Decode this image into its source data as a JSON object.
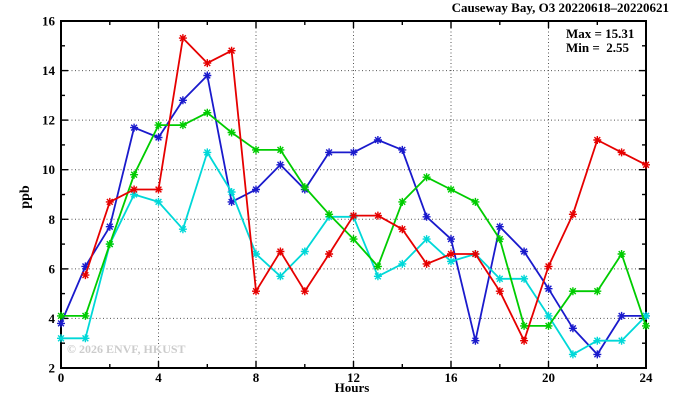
{
  "chart_data": {
    "type": "line",
    "title": "Causeway Bay, O3 20220618–20220621",
    "xlabel": "Hours",
    "ylabel": "ppb",
    "xlim": [
      0,
      24
    ],
    "ylim": [
      2,
      16
    ],
    "grid": "dotted",
    "legend": "none",
    "annotation": {
      "max_label": "Max = 15.31",
      "min_label": "Min =  2.55",
      "max_value": 15.31,
      "min_value": 2.55
    },
    "watermark": "© 2026 ENVF, HKUST",
    "axes": {
      "xticks": [
        0,
        4,
        8,
        12,
        16,
        20,
        24
      ],
      "yticks": [
        2,
        4,
        6,
        8,
        10,
        12,
        14,
        16
      ],
      "x_minor_step": 2,
      "y_minor_step": 1,
      "x_gridlines": [
        4,
        8,
        12,
        16,
        20
      ],
      "y_gridlines": [
        4,
        6,
        8,
        10,
        12,
        14
      ]
    },
    "x_hours": [
      0,
      1,
      2,
      3,
      4,
      5,
      6,
      7,
      8,
      9,
      10,
      11,
      12,
      13,
      14,
      15,
      16,
      17,
      18,
      19,
      20,
      21,
      22,
      23,
      24
    ],
    "series": [
      {
        "name": "series-blue",
        "color": "#1a1acc",
        "values": [
          3.8,
          6.1,
          7.7,
          11.7,
          11.3,
          12.8,
          13.8,
          8.7,
          9.2,
          10.2,
          9.2,
          10.7,
          10.7,
          11.2,
          10.8,
          8.1,
          7.2,
          3.1,
          7.7,
          6.7,
          5.2,
          3.6,
          2.55,
          4.1,
          4.1
        ]
      },
      {
        "name": "series-cyan",
        "color": "#00d8d8",
        "values": [
          3.2,
          3.2,
          7.0,
          9.0,
          8.7,
          7.6,
          10.7,
          9.1,
          6.6,
          5.7,
          6.7,
          8.1,
          8.1,
          5.7,
          6.2,
          7.2,
          6.3,
          6.6,
          5.6,
          5.6,
          4.1,
          2.55,
          3.1,
          3.1,
          4.1
        ]
      },
      {
        "name": "series-green",
        "color": "#00cc00",
        "values": [
          4.1,
          4.1,
          7.0,
          9.8,
          11.8,
          11.8,
          12.3,
          11.5,
          10.8,
          10.8,
          9.3,
          8.2,
          7.2,
          6.1,
          8.7,
          9.7,
          9.2,
          8.7,
          7.2,
          3.7,
          3.7,
          5.1,
          5.1,
          6.6,
          3.7
        ]
      },
      {
        "name": "series-red",
        "color": "#e60000",
        "values": [
          null,
          5.75,
          8.7,
          9.2,
          9.2,
          15.31,
          14.3,
          14.8,
          5.1,
          6.7,
          5.1,
          6.6,
          8.15,
          8.15,
          7.6,
          6.2,
          6.6,
          6.6,
          5.1,
          3.1,
          6.1,
          8.2,
          11.2,
          10.7,
          10.2
        ]
      }
    ],
    "colors": {
      "frame": "#000000",
      "gridline": "#555555",
      "tick_label": "#000000",
      "watermark": "#cccccc"
    }
  }
}
